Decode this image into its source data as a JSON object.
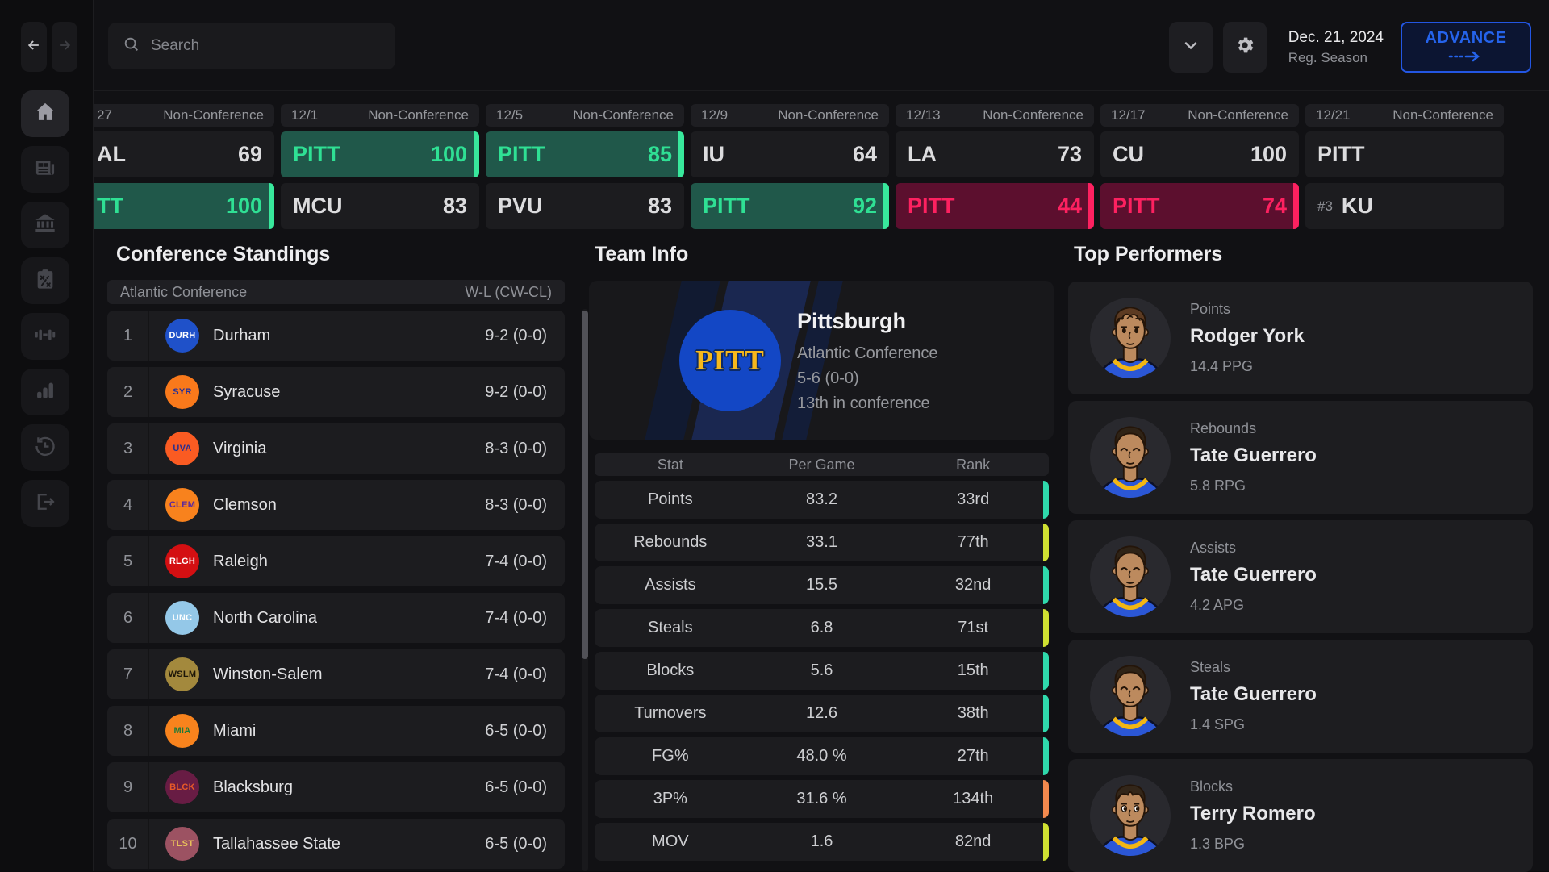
{
  "topbar": {
    "search_placeholder": "Search",
    "date_line1": "Dec. 21, 2024",
    "date_line2": "Reg. Season",
    "advance_label": "ADVANCE"
  },
  "sidebar": {
    "icons": [
      "back-arrow",
      "forward-arrow",
      "home",
      "news",
      "program",
      "gameplan",
      "training",
      "stats",
      "history",
      "exit"
    ],
    "active_icon": "home"
  },
  "colors": {
    "win_bg": "#20584a",
    "win_text": "#2fe094",
    "win_accent": "#38e89c",
    "loss_bg": "#5c0f2e",
    "loss_text": "#fd2160",
    "advance_blue": "#2563eb",
    "tier_teal": "#2fd9ac",
    "tier_yellow": "#cfe032",
    "tier_orange": "#f2894e"
  },
  "games": [
    {
      "date": "27",
      "type": "Non-Conference",
      "clipped": true,
      "rows": [
        {
          "team": "AL",
          "score": "69",
          "result": "plain"
        },
        {
          "team": "TT",
          "score": "100",
          "result": "win"
        }
      ]
    },
    {
      "date": "12/1",
      "type": "Non-Conference",
      "rows": [
        {
          "team": "PITT",
          "score": "100",
          "result": "win"
        },
        {
          "team": "MCU",
          "score": "83",
          "result": "plain"
        }
      ]
    },
    {
      "date": "12/5",
      "type": "Non-Conference",
      "rows": [
        {
          "team": "PITT",
          "score": "85",
          "result": "win"
        },
        {
          "team": "PVU",
          "score": "83",
          "result": "plain"
        }
      ]
    },
    {
      "date": "12/9",
      "type": "Non-Conference",
      "rows": [
        {
          "team": "IU",
          "score": "64",
          "result": "plain"
        },
        {
          "team": "PITT",
          "score": "92",
          "result": "win"
        }
      ]
    },
    {
      "date": "12/13",
      "type": "Non-Conference",
      "rows": [
        {
          "team": "LA",
          "score": "73",
          "result": "plain"
        },
        {
          "team": "PITT",
          "score": "44",
          "result": "loss"
        }
      ]
    },
    {
      "date": "12/17",
      "type": "Non-Conference",
      "rows": [
        {
          "team": "CU",
          "score": "100",
          "result": "plain"
        },
        {
          "team": "PITT",
          "score": "74",
          "result": "loss"
        }
      ]
    },
    {
      "date": "12/21",
      "type": "Non-Conference",
      "rows": [
        {
          "team": "PITT",
          "score": "",
          "result": "plain"
        },
        {
          "team": "KU",
          "rank": "#3",
          "score": "",
          "result": "plain"
        }
      ]
    }
  ],
  "standings": {
    "title": "Conference Standings",
    "header_left": "Atlantic Conference",
    "header_right": "W-L (CW-CL)",
    "rows": [
      {
        "rank": "1",
        "abbr": "DURH",
        "name": "Durham",
        "record": "9-2 (0-0)",
        "logo_bg": "#1f51c9",
        "logo_fg": "#ffffff"
      },
      {
        "rank": "2",
        "abbr": "SYR",
        "name": "Syracuse",
        "record": "9-2 (0-0)",
        "logo_bg": "#f9791b",
        "logo_fg": "#24309a"
      },
      {
        "rank": "3",
        "abbr": "UVA",
        "name": "Virginia",
        "record": "8-3 (0-0)",
        "logo_bg": "#fa5b22",
        "logo_fg": "#2b2f8e"
      },
      {
        "rank": "4",
        "abbr": "CLEM",
        "name": "Clemson",
        "record": "8-3 (0-0)",
        "logo_bg": "#f8821d",
        "logo_fg": "#5b2a9d"
      },
      {
        "rank": "5",
        "abbr": "RLGH",
        "name": "Raleigh",
        "record": "7-4 (0-0)",
        "logo_bg": "#d40f12",
        "logo_fg": "#ffffff"
      },
      {
        "rank": "6",
        "abbr": "UNC",
        "name": "North Carolina",
        "record": "7-4 (0-0)",
        "logo_bg": "#94c8e8",
        "logo_fg": "#ffffff"
      },
      {
        "rank": "7",
        "abbr": "WSLM",
        "name": "Winston-Salem",
        "record": "7-4 (0-0)",
        "logo_bg": "#a3893d",
        "logo_fg": "#1c1608"
      },
      {
        "rank": "8",
        "abbr": "MIA",
        "name": "Miami",
        "record": "6-5 (0-0)",
        "logo_bg": "#f8831d",
        "logo_fg": "#1e7a38"
      },
      {
        "rank": "9",
        "abbr": "BLCK",
        "name": "Blacksburg",
        "record": "6-5 (0-0)",
        "logo_bg": "#681c44",
        "logo_fg": "#e85a28"
      },
      {
        "rank": "10",
        "abbr": "TLST",
        "name": "Tallahassee State",
        "record": "6-5 (0-0)",
        "logo_bg": "#9c5262",
        "logo_fg": "#e8c05a"
      }
    ]
  },
  "team_info": {
    "title": "Team Info",
    "logo_text": "PITT",
    "name": "Pittsburgh",
    "conference": "Atlantic Conference",
    "record": "5-6 (0-0)",
    "standing": "13th in conference",
    "stats_header": [
      "Stat",
      "Per Game",
      "Rank"
    ],
    "stats": [
      {
        "stat": "Points",
        "value": "83.2",
        "rank": "33rd",
        "tier": "teal"
      },
      {
        "stat": "Rebounds",
        "value": "33.1",
        "rank": "77th",
        "tier": "yellow"
      },
      {
        "stat": "Assists",
        "value": "15.5",
        "rank": "32nd",
        "tier": "teal"
      },
      {
        "stat": "Steals",
        "value": "6.8",
        "rank": "71st",
        "tier": "yellow"
      },
      {
        "stat": "Blocks",
        "value": "5.6",
        "rank": "15th",
        "tier": "teal"
      },
      {
        "stat": "Turnovers",
        "value": "12.6",
        "rank": "38th",
        "tier": "teal"
      },
      {
        "stat": "FG%",
        "value": "48.0 %",
        "rank": "27th",
        "tier": "teal"
      },
      {
        "stat": "3P%",
        "value": "31.6 %",
        "rank": "134th",
        "tier": "orange"
      },
      {
        "stat": "MOV",
        "value": "1.6",
        "rank": "82nd",
        "tier": "yellow"
      }
    ]
  },
  "performers": {
    "title": "Top Performers",
    "cards": [
      {
        "category": "Points",
        "name": "Rodger York",
        "stat": "14.4 PPG",
        "avatar": "curly"
      },
      {
        "category": "Rebounds",
        "name": "Tate Guerrero",
        "stat": "5.8 RPG",
        "avatar": "closed"
      },
      {
        "category": "Assists",
        "name": "Tate Guerrero",
        "stat": "4.2 APG",
        "avatar": "closed"
      },
      {
        "category": "Steals",
        "name": "Tate Guerrero",
        "stat": "1.4 SPG",
        "avatar": "closed"
      },
      {
        "category": "Blocks",
        "name": "Terry Romero",
        "stat": "1.3 BPG",
        "avatar": "parted"
      }
    ]
  }
}
